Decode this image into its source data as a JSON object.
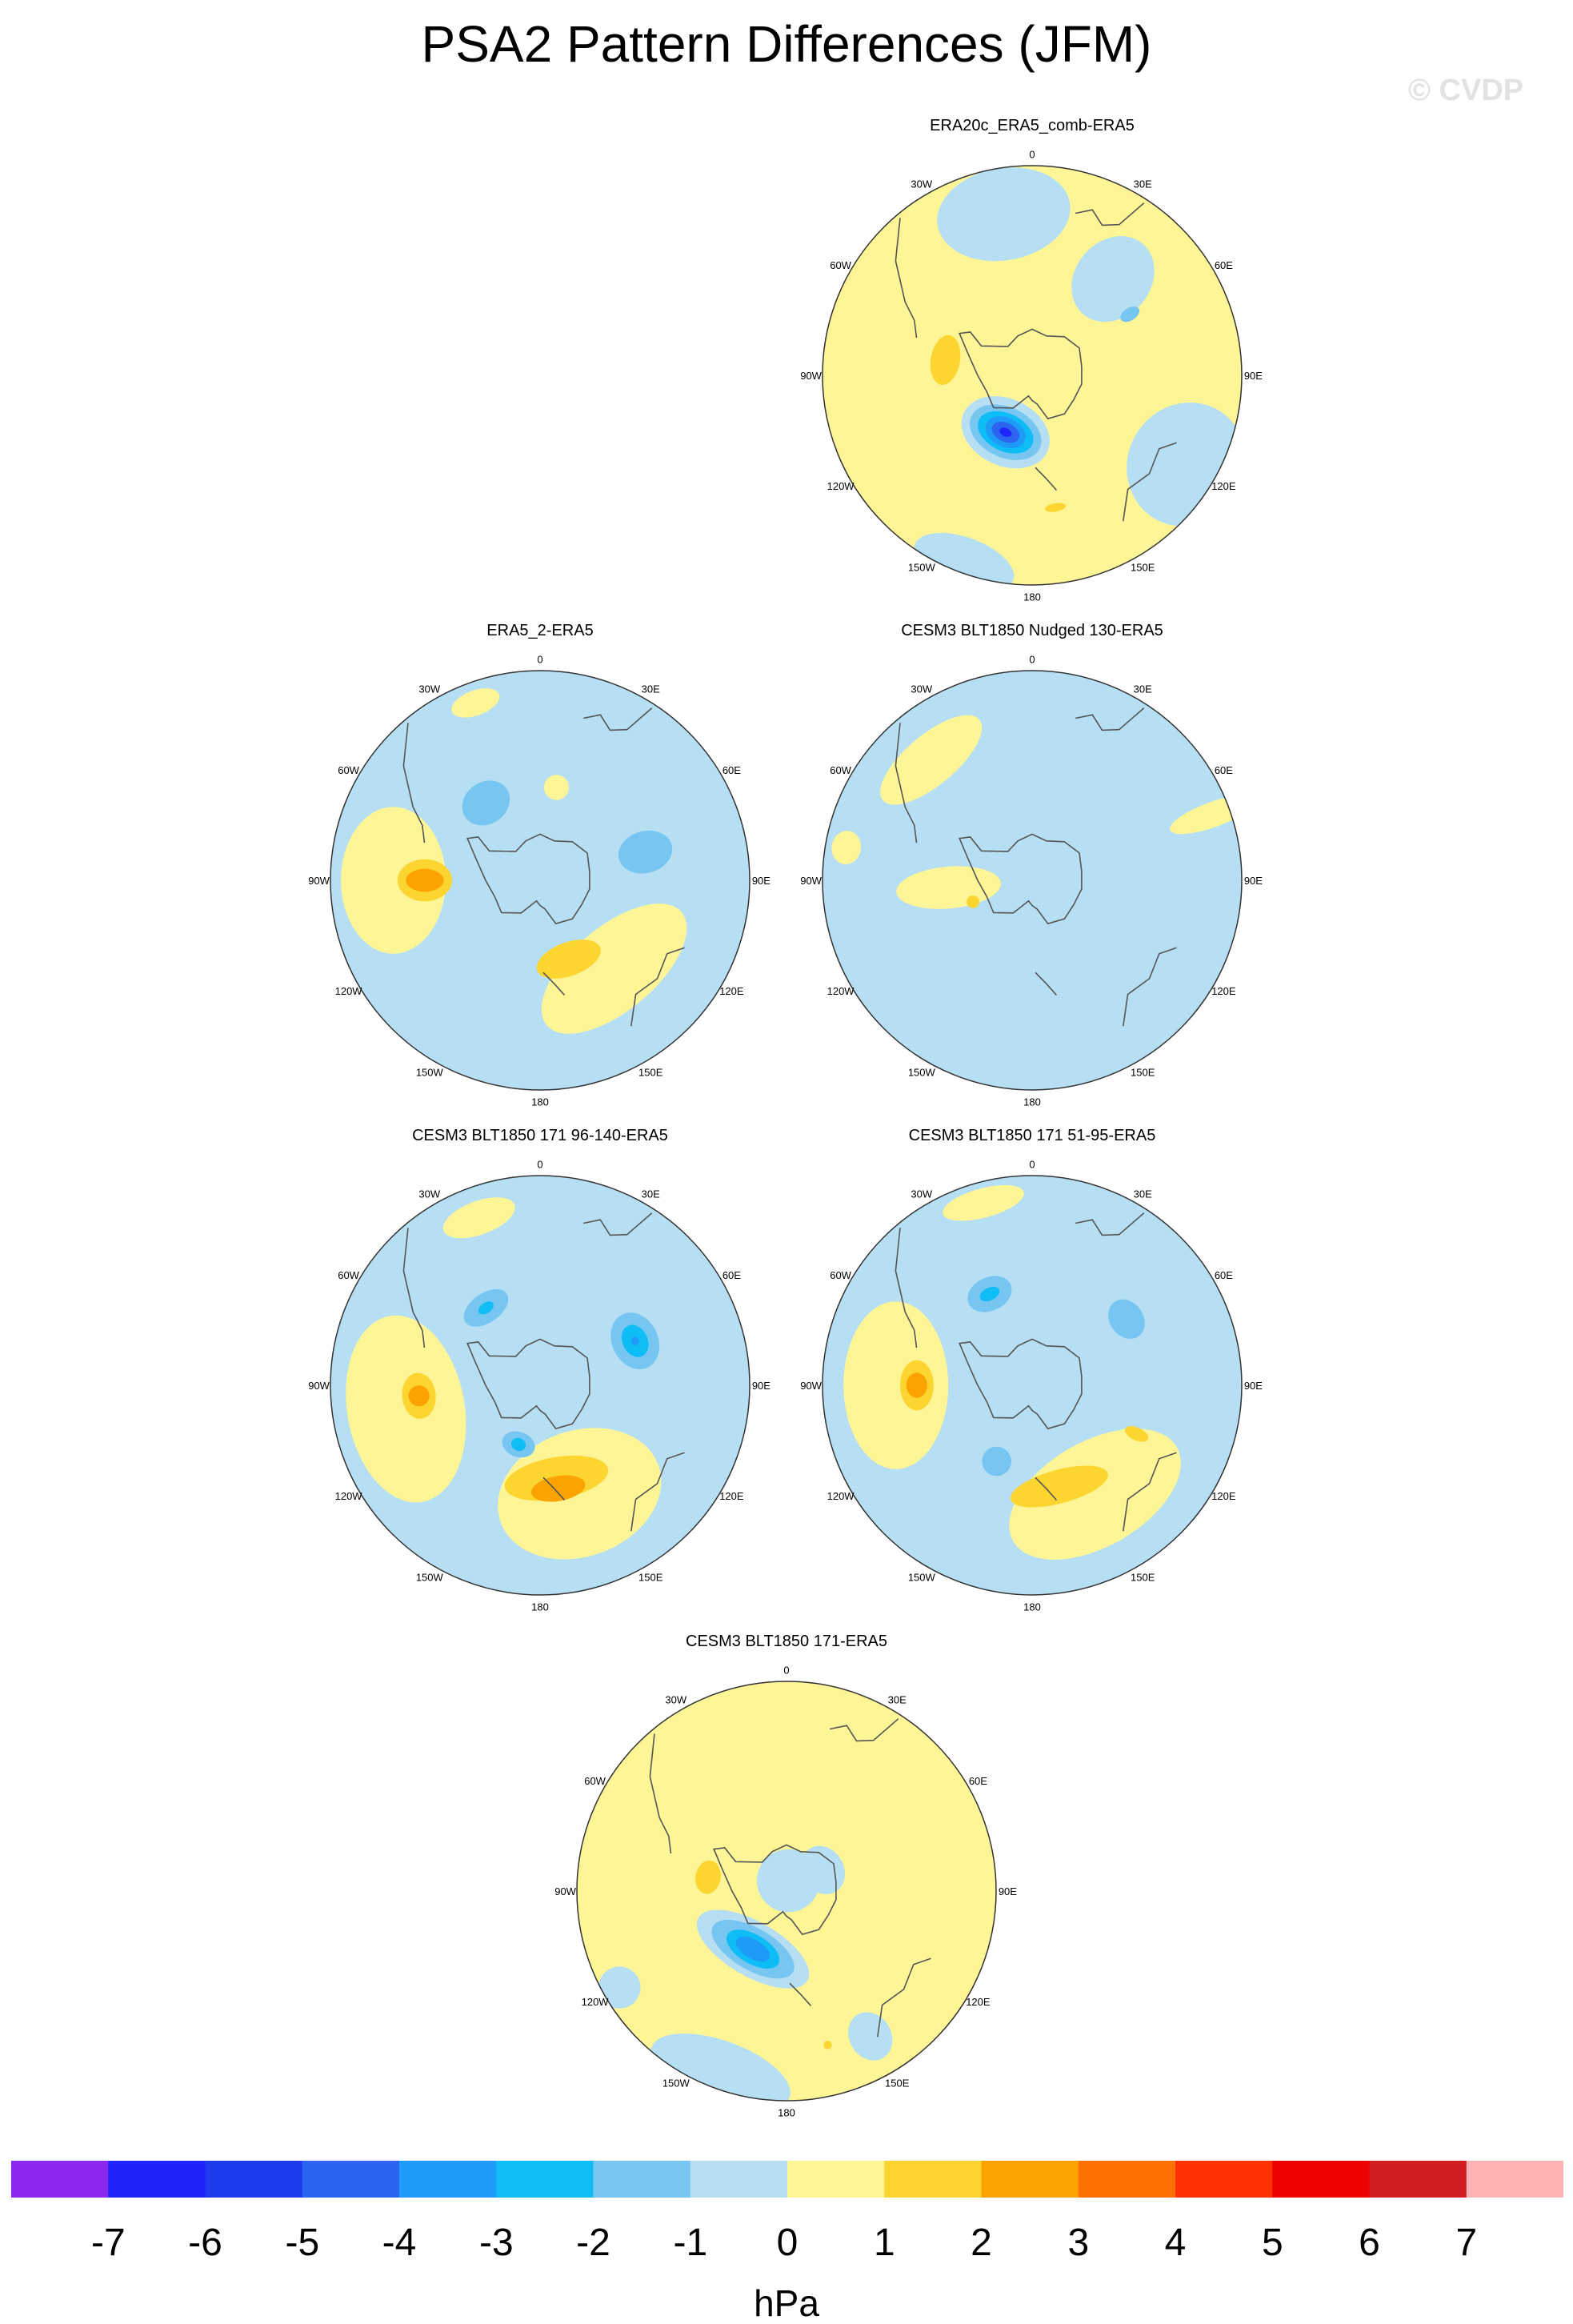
{
  "title": "PSA2 Pattern Differences (JFM)",
  "copyright": "© CVDP",
  "units": "hPa",
  "longitude_labels": [
    "0",
    "30E",
    "60E",
    "90E",
    "120E",
    "150E",
    "180",
    "150W",
    "120W",
    "90W",
    "60W",
    "30W"
  ],
  "colors": {
    "neg_1": "#b7dff3",
    "pos_1": "#fdf596",
    "pos_2": "#fdd531",
    "pos_3": "#fca301",
    "neg_2": "#77c6f1",
    "neg_3": "#0ebcf6",
    "neg_4": "#1d9bf6",
    "neg_5": "#2b64ee",
    "neg_6": "#1f24fb",
    "coast": "#555555"
  },
  "colorbar": {
    "levels": [
      "-7",
      "-6",
      "-5",
      "-4",
      "-3",
      "-2",
      "-1",
      "0",
      "1",
      "2",
      "3",
      "4",
      "5",
      "6",
      "7"
    ],
    "colors": [
      "#8a28ee",
      "#1f24fb",
      "#1d3bed",
      "#2b64ee",
      "#1d9bf6",
      "#0ebcf6",
      "#77c6f1",
      "#b7dff3",
      "#fdf596",
      "#fdd531",
      "#fca301",
      "#fd7003",
      "#fd3101",
      "#ee0000",
      "#d11d22",
      "#feb2b4"
    ]
  },
  "panels": [
    {
      "title": "ERA20c_ERA5_comb-ERA5",
      "base": "pos_1",
      "blobs": [
        {
          "c": "neg_1",
          "lon": -10,
          "r": 0.78,
          "a": 0.32,
          "b": 0.22
        },
        {
          "c": "neg_1",
          "lon": 40,
          "r": 0.6,
          "a": 0.18,
          "b": 0.22
        },
        {
          "c": "neg_2",
          "lon": 58,
          "r": 0.55,
          "a": 0.03,
          "b": 0.05
        },
        {
          "c": "neg_1",
          "lon": 120,
          "r": 0.85,
          "a": 0.3,
          "b": 0.28
        },
        {
          "c": "neg_1",
          "lon": -160,
          "r": 0.95,
          "a": 0.25,
          "b": 0.12
        },
        {
          "c": "pos_2",
          "lon": -80,
          "r": 0.42,
          "a": 0.12,
          "b": 0.07
        },
        {
          "c": "pos_2",
          "lon": 170,
          "r": 0.64,
          "a": 0.05,
          "b": 0.02
        },
        {
          "c": "neg_1",
          "lon": -155,
          "r": 0.3,
          "a": 0.22,
          "b": 0.16
        },
        {
          "c": "neg_2",
          "lon": -155,
          "r": 0.3,
          "a": 0.18,
          "b": 0.12
        },
        {
          "c": "neg_3",
          "lon": -155,
          "r": 0.3,
          "a": 0.14,
          "b": 0.09
        },
        {
          "c": "neg_4",
          "lon": -155,
          "r": 0.3,
          "a": 0.1,
          "b": 0.07
        },
        {
          "c": "neg_5",
          "lon": -155,
          "r": 0.3,
          "a": 0.07,
          "b": 0.045
        },
        {
          "c": "neg_6",
          "lon": -155,
          "r": 0.3,
          "a": 0.03,
          "b": 0.02
        }
      ]
    },
    {
      "title": "ERA5_2-ERA5",
      "base": "neg_1",
      "blobs": [
        {
          "c": "pos_1",
          "lon": -90,
          "r": 0.7,
          "a": 0.35,
          "b": 0.25
        },
        {
          "c": "pos_1",
          "lon": 140,
          "r": 0.55,
          "a": 0.42,
          "b": 0.2
        },
        {
          "c": "pos_1",
          "lon": -20,
          "r": 0.9,
          "a": 0.12,
          "b": 0.06
        },
        {
          "c": "pos_1",
          "lon": 10,
          "r": 0.45,
          "a": 0.06,
          "b": 0.06
        },
        {
          "c": "pos_2",
          "lon": -90,
          "r": 0.55,
          "a": 0.1,
          "b": 0.13
        },
        {
          "c": "pos_3",
          "lon": -90,
          "r": 0.55,
          "a": 0.055,
          "b": 0.09
        },
        {
          "c": "pos_2",
          "lon": 160,
          "r": 0.4,
          "a": 0.16,
          "b": 0.08
        },
        {
          "c": "neg_2",
          "lon": -35,
          "r": 0.45,
          "a": 0.12,
          "b": 0.1
        },
        {
          "c": "neg_2",
          "lon": 75,
          "r": 0.52,
          "a": 0.1,
          "b": 0.13
        }
      ]
    },
    {
      "title": "CESM3 BLT1850 Nudged 130-ERA5",
      "base": "neg_1",
      "blobs": [
        {
          "c": "pos_1",
          "lon": -40,
          "r": 0.75,
          "a": 0.3,
          "b": 0.12
        },
        {
          "c": "pos_1",
          "lon": -95,
          "r": 0.4,
          "a": 0.1,
          "b": 0.25
        },
        {
          "c": "pos_1",
          "lon": 70,
          "r": 0.92,
          "a": 0.06,
          "b": 0.22
        },
        {
          "c": "pos_1",
          "lon": -80,
          "r": 0.9,
          "a": 0.08,
          "b": 0.07
        },
        {
          "c": "pos_2",
          "lon": -110,
          "r": 0.3,
          "a": 0.03,
          "b": 0.03
        }
      ]
    },
    {
      "title": "CESM3 BLT1850 171 96-140-ERA5",
      "base": "neg_1",
      "blobs": [
        {
          "c": "pos_1",
          "lon": -100,
          "r": 0.65,
          "a": 0.45,
          "b": 0.28
        },
        {
          "c": "pos_1",
          "lon": 160,
          "r": 0.55,
          "a": 0.4,
          "b": 0.3
        },
        {
          "c": "pos_1",
          "lon": -20,
          "r": 0.85,
          "a": 0.18,
          "b": 0.08
        },
        {
          "c": "pos_2",
          "lon": -95,
          "r": 0.58,
          "a": 0.11,
          "b": 0.08
        },
        {
          "c": "pos_3",
          "lon": -95,
          "r": 0.58,
          "a": 0.05,
          "b": 0.05
        },
        {
          "c": "pos_2",
          "lon": 170,
          "r": 0.45,
          "a": 0.25,
          "b": 0.1
        },
        {
          "c": "pos_3",
          "lon": 170,
          "r": 0.5,
          "a": 0.13,
          "b": 0.06
        },
        {
          "c": "neg_2",
          "lon": -35,
          "r": 0.45,
          "a": 0.12,
          "b": 0.07
        },
        {
          "c": "neg_3",
          "lon": -35,
          "r": 0.45,
          "a": 0.04,
          "b": 0.025
        },
        {
          "c": "neg_2",
          "lon": 65,
          "r": 0.5,
          "a": 0.14,
          "b": 0.11
        },
        {
          "c": "neg_3",
          "lon": 65,
          "r": 0.5,
          "a": 0.08,
          "b": 0.06
        },
        {
          "c": "neg_4",
          "lon": 65,
          "r": 0.5,
          "a": 0.02,
          "b": 0.02
        },
        {
          "c": "neg_2",
          "lon": -160,
          "r": 0.3,
          "a": 0.08,
          "b": 0.06
        },
        {
          "c": "neg_3",
          "lon": -160,
          "r": 0.3,
          "a": 0.035,
          "b": 0.03
        }
      ]
    },
    {
      "title": "CESM3 BLT1850 171 51-95-ERA5",
      "base": "neg_1",
      "blobs": [
        {
          "c": "pos_1",
          "lon": -90,
          "r": 0.65,
          "a": 0.4,
          "b": 0.25
        },
        {
          "c": "pos_1",
          "lon": 150,
          "r": 0.6,
          "a": 0.45,
          "b": 0.25
        },
        {
          "c": "pos_1",
          "lon": -15,
          "r": 0.9,
          "a": 0.2,
          "b": 0.07
        },
        {
          "c": "pos_2",
          "lon": -90,
          "r": 0.55,
          "a": 0.12,
          "b": 0.08
        },
        {
          "c": "pos_3",
          "lon": -90,
          "r": 0.55,
          "a": 0.06,
          "b": 0.05
        },
        {
          "c": "pos_2",
          "lon": 165,
          "r": 0.5,
          "a": 0.24,
          "b": 0.08
        },
        {
          "c": "pos_2",
          "lon": 115,
          "r": 0.55,
          "a": 0.03,
          "b": 0.06
        },
        {
          "c": "neg_2",
          "lon": -25,
          "r": 0.48,
          "a": 0.11,
          "b": 0.08
        },
        {
          "c": "neg_3",
          "lon": -25,
          "r": 0.48,
          "a": 0.05,
          "b": 0.03
        },
        {
          "c": "neg_2",
          "lon": 55,
          "r": 0.55,
          "a": 0.1,
          "b": 0.08
        },
        {
          "c": "neg_2",
          "lon": -155,
          "r": 0.4,
          "a": 0.07,
          "b": 0.07
        }
      ]
    },
    {
      "title": "CESM3 BLT1850 171-ERA5",
      "base": "pos_1",
      "blobs": [
        {
          "c": "neg_1",
          "lon": -160,
          "r": 0.92,
          "a": 0.35,
          "b": 0.15
        },
        {
          "c": "neg_1",
          "lon": -120,
          "r": 0.92,
          "a": 0.1,
          "b": 0.1
        },
        {
          "c": "neg_1",
          "lon": 10,
          "r": 0.05,
          "a": 0.15,
          "b": 0.15
        },
        {
          "c": "neg_1",
          "lon": 60,
          "r": 0.2,
          "a": 0.12,
          "b": 0.1
        },
        {
          "c": "neg_1",
          "lon": 150,
          "r": 0.8,
          "a": 0.1,
          "b": 0.12
        },
        {
          "c": "pos_2",
          "lon": -80,
          "r": 0.38,
          "a": 0.08,
          "b": 0.06
        },
        {
          "c": "pos_2",
          "lon": 165,
          "r": 0.76,
          "a": 0.02,
          "b": 0.02
        },
        {
          "c": "neg_1",
          "lon": -150,
          "r": 0.32,
          "a": 0.3,
          "b": 0.13
        },
        {
          "c": "neg_2",
          "lon": -150,
          "r": 0.32,
          "a": 0.22,
          "b": 0.1
        },
        {
          "c": "neg_3",
          "lon": -150,
          "r": 0.32,
          "a": 0.14,
          "b": 0.07
        },
        {
          "c": "neg_4",
          "lon": -150,
          "r": 0.32,
          "a": 0.09,
          "b": 0.045
        }
      ]
    }
  ]
}
